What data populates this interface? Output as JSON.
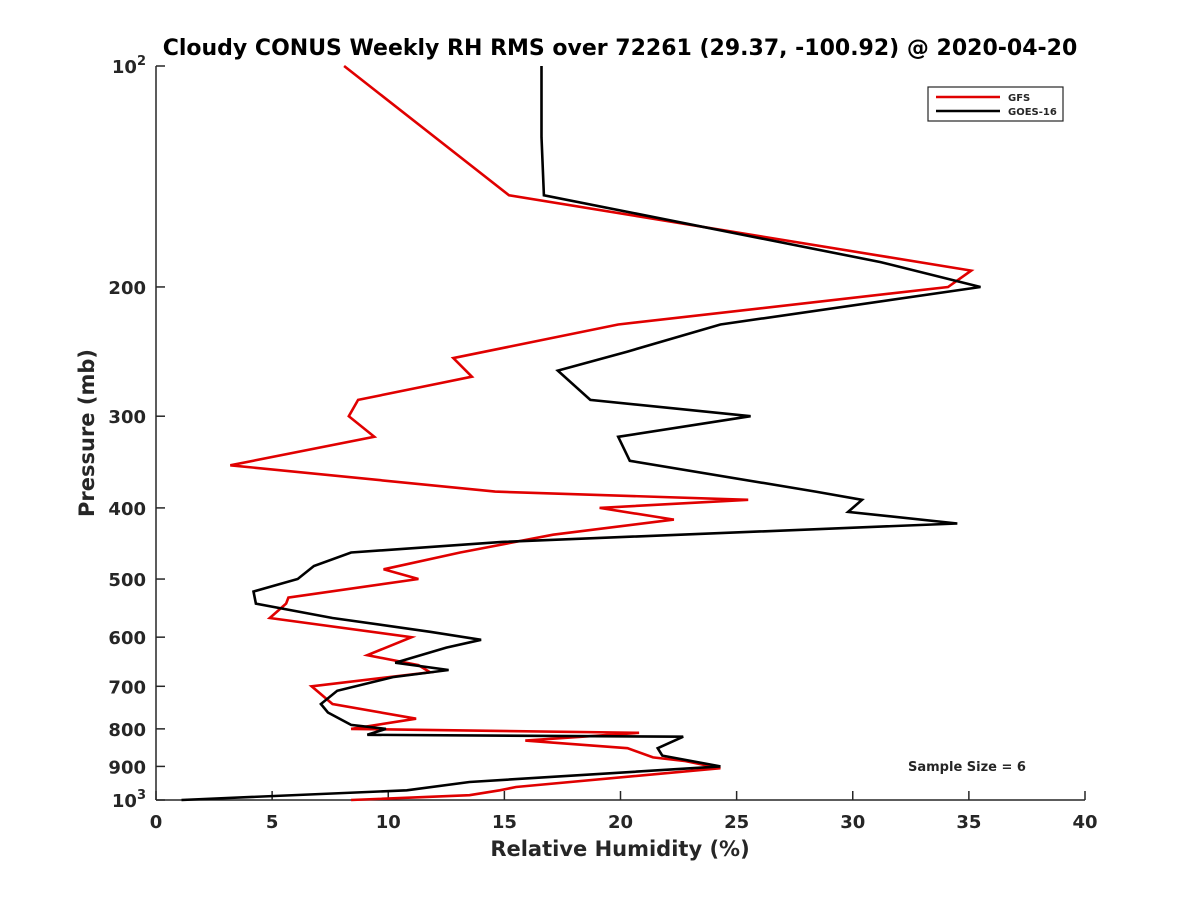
{
  "chart_data": {
    "type": "line",
    "title": "Cloudy CONUS Weekly RH RMS over 72261 (29.37, -100.92) @ 2020-04-20",
    "xlabel": "Relative Humidity (%)",
    "ylabel": "Pressure (mb)",
    "xlim": [
      0,
      40
    ],
    "ylim": [
      100,
      1000
    ],
    "y_scale": "log",
    "y_reversed": true,
    "grid": false,
    "legend_position": "top-right",
    "annotation": "Sample Size = 6",
    "x_ticks": [
      "0",
      "5",
      "10",
      "15",
      "20",
      "25",
      "30",
      "35",
      "40"
    ],
    "x_tick_values": [
      0,
      5,
      10,
      15,
      20,
      25,
      30,
      35,
      40
    ],
    "y_ticks": [
      {
        "value": 100,
        "base": "10",
        "exp": "2"
      },
      {
        "value": 200,
        "label": "200"
      },
      {
        "value": 300,
        "label": "300"
      },
      {
        "value": 400,
        "label": "400"
      },
      {
        "value": 500,
        "label": "500"
      },
      {
        "value": 600,
        "label": "600"
      },
      {
        "value": 700,
        "label": "700"
      },
      {
        "value": 800,
        "label": "800"
      },
      {
        "value": 900,
        "label": "900"
      },
      {
        "value": 1000,
        "base": "10",
        "exp": "3"
      }
    ],
    "series": [
      {
        "name": "GFS",
        "color": "#e00000",
        "points": [
          [
            8.1,
            100
          ],
          [
            15.2,
            150
          ],
          [
            35.1,
            190
          ],
          [
            34.1,
            200
          ],
          [
            19.9,
            225
          ],
          [
            12.8,
            250
          ],
          [
            13.6,
            265
          ],
          [
            8.7,
            285
          ],
          [
            8.3,
            300
          ],
          [
            9.4,
            320
          ],
          [
            3.2,
            350
          ],
          [
            14.6,
            380
          ],
          [
            25.5,
            390
          ],
          [
            19.1,
            400
          ],
          [
            22.3,
            415
          ],
          [
            17.1,
            435
          ],
          [
            13.1,
            460
          ],
          [
            9.8,
            485
          ],
          [
            11.3,
            500
          ],
          [
            5.7,
            530
          ],
          [
            5.6,
            540
          ],
          [
            4.9,
            565
          ],
          [
            11.0,
            600
          ],
          [
            9.1,
            635
          ],
          [
            11.3,
            655
          ],
          [
            11.8,
            670
          ],
          [
            6.7,
            700
          ],
          [
            7.6,
            740
          ],
          [
            11.2,
            775
          ],
          [
            8.4,
            800
          ],
          [
            20.8,
            810
          ],
          [
            15.9,
            830
          ],
          [
            20.3,
            850
          ],
          [
            21.4,
            875
          ],
          [
            22.8,
            885
          ],
          [
            24.3,
            905
          ],
          [
            15.5,
            960
          ],
          [
            14.8,
            970
          ],
          [
            13.5,
            985
          ],
          [
            8.4,
            1000
          ]
        ]
      },
      {
        "name": "GOES-16",
        "color": "#000000",
        "points": [
          [
            16.6,
            100
          ],
          [
            16.6,
            125
          ],
          [
            16.7,
            150
          ],
          [
            31.2,
            185
          ],
          [
            35.5,
            200
          ],
          [
            24.3,
            225
          ],
          [
            20.3,
            245
          ],
          [
            17.3,
            260
          ],
          [
            18.7,
            285
          ],
          [
            25.6,
            300
          ],
          [
            19.9,
            320
          ],
          [
            20.4,
            345
          ],
          [
            28.4,
            380
          ],
          [
            30.4,
            390
          ],
          [
            29.8,
            405
          ],
          [
            34.5,
            420
          ],
          [
            14.9,
            445
          ],
          [
            8.4,
            460
          ],
          [
            6.8,
            480
          ],
          [
            6.1,
            500
          ],
          [
            4.2,
            520
          ],
          [
            4.3,
            540
          ],
          [
            7.6,
            565
          ],
          [
            11.8,
            590
          ],
          [
            14.0,
            605
          ],
          [
            12.5,
            620
          ],
          [
            10.3,
            650
          ],
          [
            12.6,
            665
          ],
          [
            10.2,
            680
          ],
          [
            7.8,
            710
          ],
          [
            7.1,
            740
          ],
          [
            7.4,
            760
          ],
          [
            8.4,
            790
          ],
          [
            9.9,
            800
          ],
          [
            9.1,
            815
          ],
          [
            22.7,
            820
          ],
          [
            21.6,
            850
          ],
          [
            21.8,
            870
          ],
          [
            24.3,
            900
          ],
          [
            13.5,
            945
          ],
          [
            10.8,
            970
          ],
          [
            1.1,
            1000
          ]
        ]
      }
    ]
  }
}
